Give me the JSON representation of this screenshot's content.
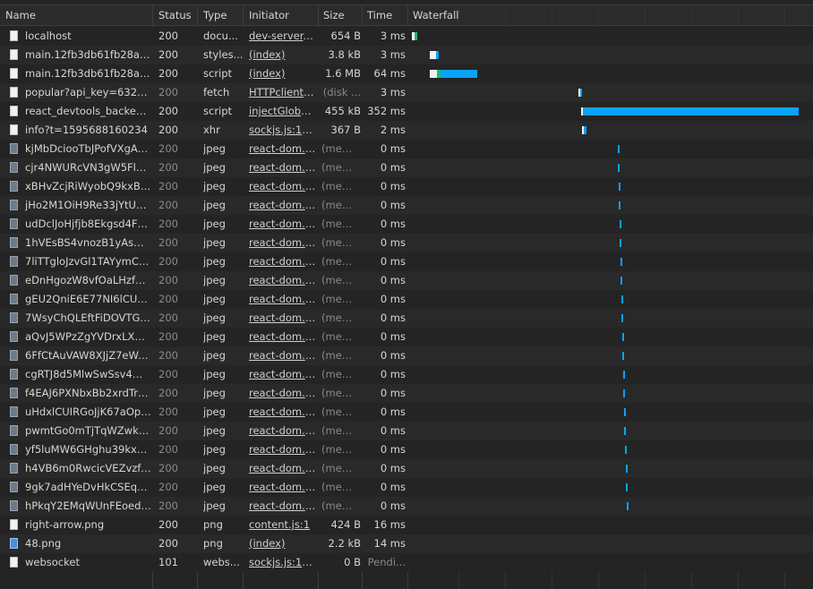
{
  "columns": {
    "name": "Name",
    "status": "Status",
    "type": "Type",
    "initiator": "Initiator",
    "size": "Size",
    "time": "Time",
    "waterfall": "Waterfall"
  },
  "colors": {
    "download": "#0aa3f5",
    "ttfb": "#1bbf6a",
    "waiting": "#f2f2f2"
  },
  "requests": [
    {
      "name": "localhost",
      "status": "200",
      "type": "docu...",
      "initiator": "dev-server.j...",
      "size": "654 B",
      "time": "3 ms",
      "icon": "document-icon",
      "bars": [
        [
          460,
          463,
          "wait"
        ],
        [
          463,
          466,
          "ttfb"
        ]
      ]
    },
    {
      "name": "main.12fb3db61fb28adc...",
      "status": "200",
      "type": "styles...",
      "initiator": "(index)",
      "size": "3.8 kB",
      "time": "3 ms",
      "icon": "document-icon",
      "bars": [
        [
          480,
          487,
          "wait"
        ],
        [
          487,
          490,
          "dl"
        ]
      ]
    },
    {
      "name": "main.12fb3db61fb28adc...",
      "status": "200",
      "type": "script",
      "initiator": "(index)",
      "size": "1.6 MB",
      "time": "64 ms",
      "icon": "document-icon",
      "bars": [
        [
          480,
          488,
          "wait"
        ],
        [
          488,
          492,
          "ttfb"
        ],
        [
          492,
          533,
          "dl"
        ]
      ]
    },
    {
      "name": "popular?api_key=6329b...",
      "status": "200",
      "type": "fetch",
      "initiator": "HTTPclient.j...",
      "size": "(disk ...",
      "time": "3 ms",
      "icon": "document-icon",
      "dimStatus": true,
      "dimSize": true,
      "bars": [
        [
          646,
          648,
          "wait"
        ],
        [
          648,
          650,
          "dl"
        ]
      ]
    },
    {
      "name": "react_devtools_backend.js",
      "status": "200",
      "type": "script",
      "initiator": "injectGlobal...",
      "size": "455 kB",
      "time": "352 ms",
      "icon": "document-icon",
      "bars": [
        [
          649,
          651,
          "wait"
        ],
        [
          651,
          892,
          "dl"
        ]
      ]
    },
    {
      "name": "info?t=1595688160234",
      "status": "200",
      "type": "xhr",
      "initiator": "sockjs.js:1606",
      "size": "367 B",
      "time": "2 ms",
      "icon": "document-icon",
      "bars": [
        [
          650,
          652,
          "wait"
        ],
        [
          652,
          655,
          "dl"
        ]
      ]
    },
    {
      "name": "kjMbDciooTbJPofVXgAo...",
      "status": "200",
      "type": "jpeg",
      "initiator": "react-dom.d...",
      "size": "(mem...",
      "time": "0 ms",
      "icon": "image-icon",
      "mem": true,
      "bars": [
        [
          690,
          692,
          "dl"
        ]
      ]
    },
    {
      "name": "cjr4NWURcVN3gW5FlHe...",
      "status": "200",
      "type": "jpeg",
      "initiator": "react-dom.d...",
      "size": "(mem...",
      "time": "0 ms",
      "icon": "image-icon",
      "mem": true,
      "bars": [
        [
          690,
          692,
          "dl"
        ]
      ]
    },
    {
      "name": "xBHvZcjRiWyobQ9kxBh...",
      "status": "200",
      "type": "jpeg",
      "initiator": "react-dom.d...",
      "size": "(mem...",
      "time": "0 ms",
      "icon": "image-icon",
      "mem": true,
      "bars": [
        [
          691,
          693,
          "dl"
        ]
      ]
    },
    {
      "name": "jHo2M1OiH9Re33jYtUQ...",
      "status": "200",
      "type": "jpeg",
      "initiator": "react-dom.d...",
      "size": "(mem...",
      "time": "0 ms",
      "icon": "image-icon",
      "mem": true,
      "bars": [
        [
          691,
          693,
          "dl"
        ]
      ]
    },
    {
      "name": "udDclJoHjfjb8Ekgsd4FDt...",
      "status": "200",
      "type": "jpeg",
      "initiator": "react-dom.d...",
      "size": "(mem...",
      "time": "0 ms",
      "icon": "image-icon",
      "mem": true,
      "bars": [
        [
          692,
          694,
          "dl"
        ]
      ]
    },
    {
      "name": "1hVEsBS4vnozB1yAsMiq...",
      "status": "200",
      "type": "jpeg",
      "initiator": "react-dom.d...",
      "size": "(mem...",
      "time": "0 ms",
      "icon": "image-icon",
      "mem": true,
      "bars": [
        [
          692,
          694,
          "dl"
        ]
      ]
    },
    {
      "name": "7liTTgloJzvGl1TAYymCfbf...",
      "status": "200",
      "type": "jpeg",
      "initiator": "react-dom.d...",
      "size": "(mem...",
      "time": "0 ms",
      "icon": "image-icon",
      "mem": true,
      "bars": [
        [
          693,
          695,
          "dl"
        ]
      ]
    },
    {
      "name": "eDnHgozW8vfOaLHzfpH...",
      "status": "200",
      "type": "jpeg",
      "initiator": "react-dom.d...",
      "size": "(mem...",
      "time": "0 ms",
      "icon": "image-icon",
      "mem": true,
      "bars": [
        [
          693,
          695,
          "dl"
        ]
      ]
    },
    {
      "name": "gEU2QniE6E77NI6lCU6...",
      "status": "200",
      "type": "jpeg",
      "initiator": "react-dom.d...",
      "size": "(mem...",
      "time": "0 ms",
      "icon": "image-icon",
      "mem": true,
      "bars": [
        [
          694,
          696,
          "dl"
        ]
      ]
    },
    {
      "name": "7WsyChQLEftFiDOVTGkv...",
      "status": "200",
      "type": "jpeg",
      "initiator": "react-dom.d...",
      "size": "(mem...",
      "time": "0 ms",
      "icon": "image-icon",
      "mem": true,
      "bars": [
        [
          694,
          696,
          "dl"
        ]
      ]
    },
    {
      "name": "aQvJ5WPzZgYVDrxLX4R...",
      "status": "200",
      "type": "jpeg",
      "initiator": "react-dom.d...",
      "size": "(mem...",
      "time": "0 ms",
      "icon": "image-icon",
      "mem": true,
      "bars": [
        [
          695,
          697,
          "dl"
        ]
      ]
    },
    {
      "name": "6FfCtAuVAW8XJjZ7eWeL...",
      "status": "200",
      "type": "jpeg",
      "initiator": "react-dom.d...",
      "size": "(mem...",
      "time": "0 ms",
      "icon": "image-icon",
      "mem": true,
      "bars": [
        [
          695,
          697,
          "dl"
        ]
      ]
    },
    {
      "name": "cgRTJ8d5MlwSwSsv4Ww...",
      "status": "200",
      "type": "jpeg",
      "initiator": "react-dom.d...",
      "size": "(mem...",
      "time": "0 ms",
      "icon": "image-icon",
      "mem": true,
      "bars": [
        [
          696,
          698,
          "dl"
        ]
      ]
    },
    {
      "name": "f4EAJ6PXNbxBb2xrdTrT2...",
      "status": "200",
      "type": "jpeg",
      "initiator": "react-dom.d...",
      "size": "(mem...",
      "time": "0 ms",
      "icon": "image-icon",
      "mem": true,
      "bars": [
        [
          696,
          698,
          "dl"
        ]
      ]
    },
    {
      "name": "uHdxlCUIRGoJjK67aOp3...",
      "status": "200",
      "type": "jpeg",
      "initiator": "react-dom.d...",
      "size": "(mem...",
      "time": "0 ms",
      "icon": "image-icon",
      "mem": true,
      "bars": [
        [
          697,
          699,
          "dl"
        ]
      ]
    },
    {
      "name": "pwmtGo0mTjTqWZwk3k...",
      "status": "200",
      "type": "jpeg",
      "initiator": "react-dom.d...",
      "size": "(mem...",
      "time": "0 ms",
      "icon": "image-icon",
      "mem": true,
      "bars": [
        [
          697,
          699,
          "dl"
        ]
      ]
    },
    {
      "name": "yf5luMW6GHghu39kxA0...",
      "status": "200",
      "type": "jpeg",
      "initiator": "react-dom.d...",
      "size": "(mem...",
      "time": "0 ms",
      "icon": "image-icon",
      "mem": true,
      "bars": [
        [
          698,
          700,
          "dl"
        ]
      ]
    },
    {
      "name": "h4VB6m0RwcicVEZvzftY...",
      "status": "200",
      "type": "jpeg",
      "initiator": "react-dom.d...",
      "size": "(mem...",
      "time": "0 ms",
      "icon": "image-icon",
      "mem": true,
      "bars": [
        [
          699,
          701,
          "dl"
        ]
      ]
    },
    {
      "name": "9gk7adHYeDvHkCSEqAv...",
      "status": "200",
      "type": "jpeg",
      "initiator": "react-dom.d...",
      "size": "(mem...",
      "time": "0 ms",
      "icon": "image-icon",
      "mem": true,
      "bars": [
        [
          699,
          701,
          "dl"
        ]
      ]
    },
    {
      "name": "hPkqY2EMqWUnFEoedu...",
      "status": "200",
      "type": "jpeg",
      "initiator": "react-dom.d...",
      "size": "(mem...",
      "time": "0 ms",
      "icon": "image-icon",
      "mem": true,
      "bars": [
        [
          700,
          702,
          "dl"
        ]
      ]
    },
    {
      "name": "right-arrow.png",
      "status": "200",
      "type": "png",
      "initiator": "content.js:1",
      "size": "424 B",
      "time": "16 ms",
      "icon": "document-icon",
      "bars": []
    },
    {
      "name": "48.png",
      "status": "200",
      "type": "png",
      "initiator": "(index)",
      "size": "2.2 kB",
      "time": "14 ms",
      "icon": "png-icon",
      "bars": []
    },
    {
      "name": "websocket",
      "status": "101",
      "type": "webs...",
      "initiator": "sockjs.js:1684",
      "size": "0 B",
      "time": "Pendi...",
      "icon": "document-icon",
      "dimTime": true,
      "bars": []
    }
  ]
}
